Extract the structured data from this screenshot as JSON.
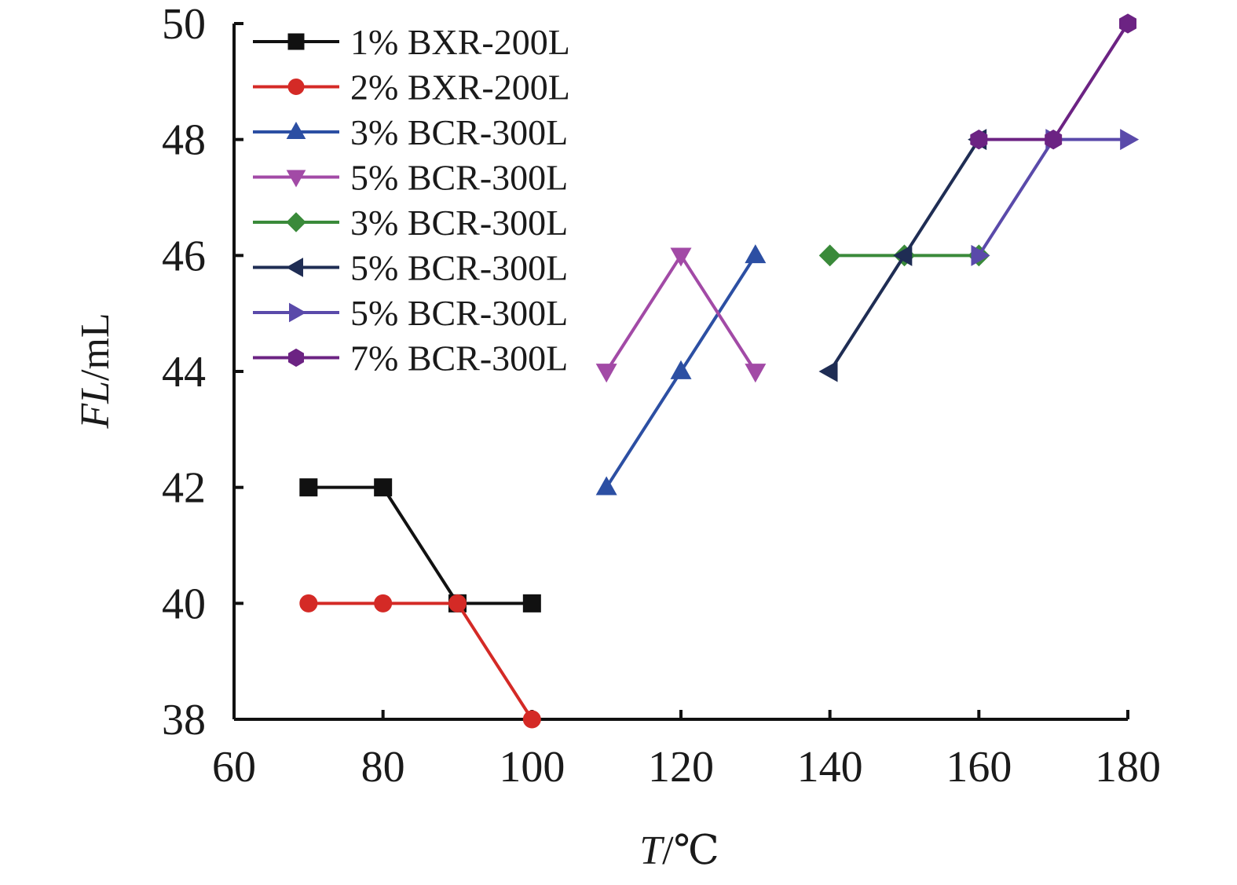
{
  "chart_data": {
    "type": "line",
    "xlabel_italic": "T",
    "xlabel_unit": "/℃",
    "ylabel_italic": "FL",
    "ylabel_unit": "/mL",
    "xlim": [
      60,
      180
    ],
    "ylim": [
      38,
      50
    ],
    "xticks": [
      60,
      80,
      100,
      120,
      140,
      160,
      180
    ],
    "yticks": [
      38,
      40,
      42,
      44,
      46,
      48,
      50
    ],
    "legend_position": "top-left",
    "grid": false,
    "series": [
      {
        "name": "1% BXR-200L",
        "color": "#111111",
        "marker": "square",
        "x": [
          70,
          80,
          90,
          100
        ],
        "y": [
          42,
          42,
          40,
          40
        ]
      },
      {
        "name": "2% BXR-200L",
        "color": "#d42a26",
        "marker": "circle",
        "x": [
          70,
          80,
          90,
          100
        ],
        "y": [
          40,
          40,
          40,
          38
        ]
      },
      {
        "name": "3% BCR-300L",
        "color": "#2c4fa3",
        "marker": "triangle-up",
        "x": [
          110,
          120,
          130
        ],
        "y": [
          42,
          44,
          46
        ]
      },
      {
        "name": "5% BCR-300L",
        "color": "#a24aa6",
        "marker": "triangle-down",
        "x": [
          110,
          120,
          130
        ],
        "y": [
          44,
          46,
          44
        ]
      },
      {
        "name": "3% BCR-300L",
        "color": "#3a8a3a",
        "marker": "diamond",
        "x": [
          140,
          150,
          160
        ],
        "y": [
          46,
          46,
          46
        ]
      },
      {
        "name": "5% BCR-300L",
        "color": "#1f2d54",
        "marker": "triangle-left",
        "x": [
          140,
          150,
          160
        ],
        "y": [
          44,
          46,
          48
        ]
      },
      {
        "name": "5% BCR-300L",
        "color": "#5a4aaa",
        "marker": "triangle-right",
        "x": [
          160,
          170,
          180
        ],
        "y": [
          46,
          48,
          48
        ]
      },
      {
        "name": "7% BCR-300L",
        "color": "#6c2383",
        "marker": "hexagon",
        "x": [
          160,
          170,
          180
        ],
        "y": [
          48,
          48,
          50
        ]
      }
    ]
  }
}
